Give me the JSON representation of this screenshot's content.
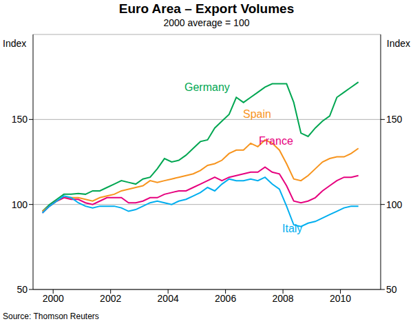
{
  "chart_data": {
    "type": "line",
    "title": "Euro Area – Export Volumes",
    "subtitle": "2000 average = 100",
    "y_label": "Index",
    "source": "Source: Thomson Reuters",
    "x": [
      2000.125,
      2000.375,
      2000.625,
      2000.875,
      2001.125,
      2001.375,
      2001.625,
      2001.875,
      2002.125,
      2002.375,
      2002.625,
      2002.875,
      2003.125,
      2003.375,
      2003.625,
      2003.875,
      2004.125,
      2004.375,
      2004.625,
      2004.875,
      2005.125,
      2005.375,
      2005.625,
      2005.875,
      2006.125,
      2006.375,
      2006.625,
      2006.875,
      2007.125,
      2007.375,
      2007.625,
      2007.875,
      2008.125,
      2008.375,
      2008.625,
      2008.875,
      2009.125,
      2009.375,
      2009.625,
      2009.875,
      2010.125,
      2010.375,
      2010.625,
      2010.875,
      2011.125
    ],
    "series": [
      {
        "name": "Germany",
        "color": "#00a651",
        "values": [
          96,
          100,
          103,
          106,
          106,
          106.5,
          106,
          108,
          108,
          110,
          112,
          114,
          113,
          112,
          115,
          116,
          121,
          127,
          125,
          126,
          129,
          133,
          137,
          138,
          145,
          149,
          153,
          163,
          160,
          163,
          166,
          169,
          171,
          171,
          171,
          160,
          142,
          140,
          145,
          149,
          152,
          163,
          166,
          169,
          172
        ]
      },
      {
        "name": "Spain",
        "color": "#f7941d",
        "values": [
          96,
          99,
          102,
          104,
          104,
          104,
          103,
          102,
          104,
          105,
          106,
          108,
          109,
          110,
          111,
          114,
          113,
          114,
          115,
          116,
          117,
          118,
          120,
          123,
          124,
          126,
          130,
          132,
          132,
          136,
          134,
          138,
          136,
          132,
          124,
          115,
          114,
          117,
          121,
          125,
          127,
          128,
          128,
          130,
          133
        ]
      },
      {
        "name": "France",
        "color": "#e6007e",
        "values": [
          95,
          99,
          102,
          104,
          103,
          103,
          101,
          100,
          102,
          104,
          104,
          104,
          101,
          101,
          102,
          104,
          104,
          106,
          107,
          108,
          108,
          110,
          112,
          114,
          116,
          114,
          116,
          117,
          118,
          119,
          119,
          122,
          119,
          118,
          111,
          102,
          101,
          102,
          104,
          108,
          111,
          114,
          116,
          116,
          117
        ]
      },
      {
        "name": "Italy",
        "color": "#00aeef",
        "values": [
          95,
          99,
          102,
          105,
          104,
          101,
          99,
          98,
          99,
          99,
          99,
          98,
          96,
          97,
          99,
          101,
          102,
          101,
          100,
          102,
          103,
          105,
          107,
          110,
          108,
          112,
          115,
          114,
          114,
          115,
          114,
          116,
          112,
          109,
          99,
          88,
          87,
          89,
          90,
          92,
          94,
          96,
          98,
          99,
          99
        ]
      }
    ],
    "xlim": [
      1999.8,
      2011.9
    ],
    "xticks": [
      {
        "value": 2000.5,
        "label": "2000"
      },
      {
        "value": 2002.5,
        "label": "2002"
      },
      {
        "value": 2004.5,
        "label": "2004"
      },
      {
        "value": 2006.5,
        "label": "2006"
      },
      {
        "value": 2008.5,
        "label": "2008"
      },
      {
        "value": 2010.5,
        "label": "2010"
      }
    ],
    "ylim": [
      50,
      200
    ],
    "yticks": [
      50,
      100,
      150
    ],
    "grid": true
  }
}
